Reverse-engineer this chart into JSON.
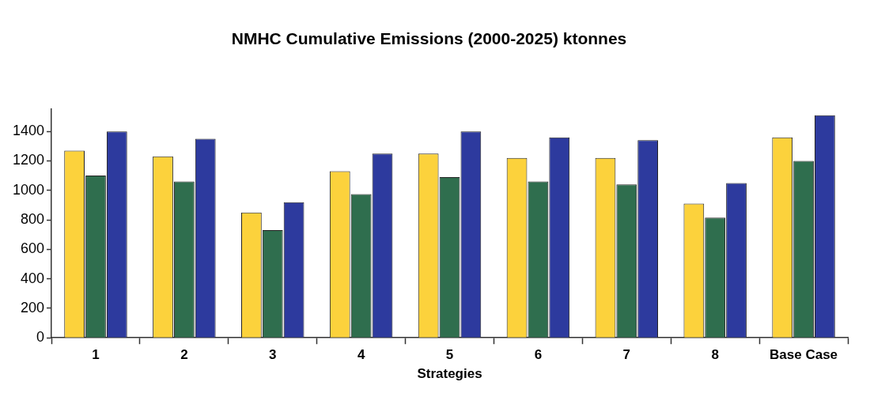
{
  "chart_data": {
    "type": "bar",
    "title": "NMHC Cumulative Emissions (2000-2025) ktonnes",
    "xlabel": "Strategies",
    "categories": [
      "1",
      "2",
      "3",
      "4",
      "5",
      "6",
      "7",
      "8",
      "Base Case"
    ],
    "series": [
      {
        "color": "#fcd23c",
        "values": [
          1270,
          1230,
          850,
          1130,
          1250,
          1220,
          1220,
          910,
          1360
        ]
      },
      {
        "color": "#2f6e4e",
        "values": [
          1100,
          1060,
          730,
          975,
          1090,
          1060,
          1040,
          815,
          1200
        ]
      },
      {
        "color": "#2d3a9e",
        "values": [
          1400,
          1350,
          920,
          1250,
          1400,
          1360,
          1340,
          1050,
          1510
        ]
      }
    ],
    "ylim": [
      0,
      1550
    ],
    "yticks": [
      0,
      200,
      400,
      600,
      800,
      1000,
      1200,
      1400
    ],
    "grid": false,
    "legend": false
  }
}
